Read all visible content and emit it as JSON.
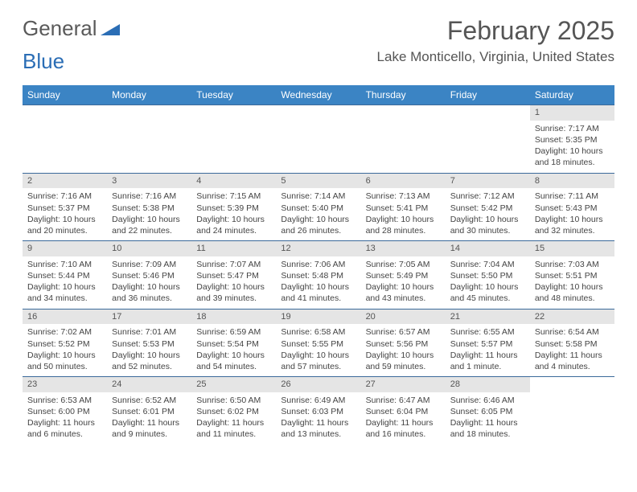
{
  "logo": {
    "word1": "General",
    "word2": "Blue"
  },
  "title": "February 2025",
  "location": "Lake Monticello, Virginia, United States",
  "colors": {
    "header_bg": "#3b84c4",
    "header_text": "#ffffff",
    "week_border": "#3b6a9a",
    "daynum_bg": "#e5e5e5",
    "text": "#444444",
    "logo_gray": "#5a5a5a",
    "logo_blue": "#2a6db5"
  },
  "weekdays": [
    "Sunday",
    "Monday",
    "Tuesday",
    "Wednesday",
    "Thursday",
    "Friday",
    "Saturday"
  ],
  "weeks": [
    [
      {
        "n": "",
        "sr": "",
        "ss": "",
        "dl": ""
      },
      {
        "n": "",
        "sr": "",
        "ss": "",
        "dl": ""
      },
      {
        "n": "",
        "sr": "",
        "ss": "",
        "dl": ""
      },
      {
        "n": "",
        "sr": "",
        "ss": "",
        "dl": ""
      },
      {
        "n": "",
        "sr": "",
        "ss": "",
        "dl": ""
      },
      {
        "n": "",
        "sr": "",
        "ss": "",
        "dl": ""
      },
      {
        "n": "1",
        "sr": "Sunrise: 7:17 AM",
        "ss": "Sunset: 5:35 PM",
        "dl": "Daylight: 10 hours and 18 minutes."
      }
    ],
    [
      {
        "n": "2",
        "sr": "Sunrise: 7:16 AM",
        "ss": "Sunset: 5:37 PM",
        "dl": "Daylight: 10 hours and 20 minutes."
      },
      {
        "n": "3",
        "sr": "Sunrise: 7:16 AM",
        "ss": "Sunset: 5:38 PM",
        "dl": "Daylight: 10 hours and 22 minutes."
      },
      {
        "n": "4",
        "sr": "Sunrise: 7:15 AM",
        "ss": "Sunset: 5:39 PM",
        "dl": "Daylight: 10 hours and 24 minutes."
      },
      {
        "n": "5",
        "sr": "Sunrise: 7:14 AM",
        "ss": "Sunset: 5:40 PM",
        "dl": "Daylight: 10 hours and 26 minutes."
      },
      {
        "n": "6",
        "sr": "Sunrise: 7:13 AM",
        "ss": "Sunset: 5:41 PM",
        "dl": "Daylight: 10 hours and 28 minutes."
      },
      {
        "n": "7",
        "sr": "Sunrise: 7:12 AM",
        "ss": "Sunset: 5:42 PM",
        "dl": "Daylight: 10 hours and 30 minutes."
      },
      {
        "n": "8",
        "sr": "Sunrise: 7:11 AM",
        "ss": "Sunset: 5:43 PM",
        "dl": "Daylight: 10 hours and 32 minutes."
      }
    ],
    [
      {
        "n": "9",
        "sr": "Sunrise: 7:10 AM",
        "ss": "Sunset: 5:44 PM",
        "dl": "Daylight: 10 hours and 34 minutes."
      },
      {
        "n": "10",
        "sr": "Sunrise: 7:09 AM",
        "ss": "Sunset: 5:46 PM",
        "dl": "Daylight: 10 hours and 36 minutes."
      },
      {
        "n": "11",
        "sr": "Sunrise: 7:07 AM",
        "ss": "Sunset: 5:47 PM",
        "dl": "Daylight: 10 hours and 39 minutes."
      },
      {
        "n": "12",
        "sr": "Sunrise: 7:06 AM",
        "ss": "Sunset: 5:48 PM",
        "dl": "Daylight: 10 hours and 41 minutes."
      },
      {
        "n": "13",
        "sr": "Sunrise: 7:05 AM",
        "ss": "Sunset: 5:49 PM",
        "dl": "Daylight: 10 hours and 43 minutes."
      },
      {
        "n": "14",
        "sr": "Sunrise: 7:04 AM",
        "ss": "Sunset: 5:50 PM",
        "dl": "Daylight: 10 hours and 45 minutes."
      },
      {
        "n": "15",
        "sr": "Sunrise: 7:03 AM",
        "ss": "Sunset: 5:51 PM",
        "dl": "Daylight: 10 hours and 48 minutes."
      }
    ],
    [
      {
        "n": "16",
        "sr": "Sunrise: 7:02 AM",
        "ss": "Sunset: 5:52 PM",
        "dl": "Daylight: 10 hours and 50 minutes."
      },
      {
        "n": "17",
        "sr": "Sunrise: 7:01 AM",
        "ss": "Sunset: 5:53 PM",
        "dl": "Daylight: 10 hours and 52 minutes."
      },
      {
        "n": "18",
        "sr": "Sunrise: 6:59 AM",
        "ss": "Sunset: 5:54 PM",
        "dl": "Daylight: 10 hours and 54 minutes."
      },
      {
        "n": "19",
        "sr": "Sunrise: 6:58 AM",
        "ss": "Sunset: 5:55 PM",
        "dl": "Daylight: 10 hours and 57 minutes."
      },
      {
        "n": "20",
        "sr": "Sunrise: 6:57 AM",
        "ss": "Sunset: 5:56 PM",
        "dl": "Daylight: 10 hours and 59 minutes."
      },
      {
        "n": "21",
        "sr": "Sunrise: 6:55 AM",
        "ss": "Sunset: 5:57 PM",
        "dl": "Daylight: 11 hours and 1 minute."
      },
      {
        "n": "22",
        "sr": "Sunrise: 6:54 AM",
        "ss": "Sunset: 5:58 PM",
        "dl": "Daylight: 11 hours and 4 minutes."
      }
    ],
    [
      {
        "n": "23",
        "sr": "Sunrise: 6:53 AM",
        "ss": "Sunset: 6:00 PM",
        "dl": "Daylight: 11 hours and 6 minutes."
      },
      {
        "n": "24",
        "sr": "Sunrise: 6:52 AM",
        "ss": "Sunset: 6:01 PM",
        "dl": "Daylight: 11 hours and 9 minutes."
      },
      {
        "n": "25",
        "sr": "Sunrise: 6:50 AM",
        "ss": "Sunset: 6:02 PM",
        "dl": "Daylight: 11 hours and 11 minutes."
      },
      {
        "n": "26",
        "sr": "Sunrise: 6:49 AM",
        "ss": "Sunset: 6:03 PM",
        "dl": "Daylight: 11 hours and 13 minutes."
      },
      {
        "n": "27",
        "sr": "Sunrise: 6:47 AM",
        "ss": "Sunset: 6:04 PM",
        "dl": "Daylight: 11 hours and 16 minutes."
      },
      {
        "n": "28",
        "sr": "Sunrise: 6:46 AM",
        "ss": "Sunset: 6:05 PM",
        "dl": "Daylight: 11 hours and 18 minutes."
      },
      {
        "n": "",
        "sr": "",
        "ss": "",
        "dl": ""
      }
    ]
  ]
}
